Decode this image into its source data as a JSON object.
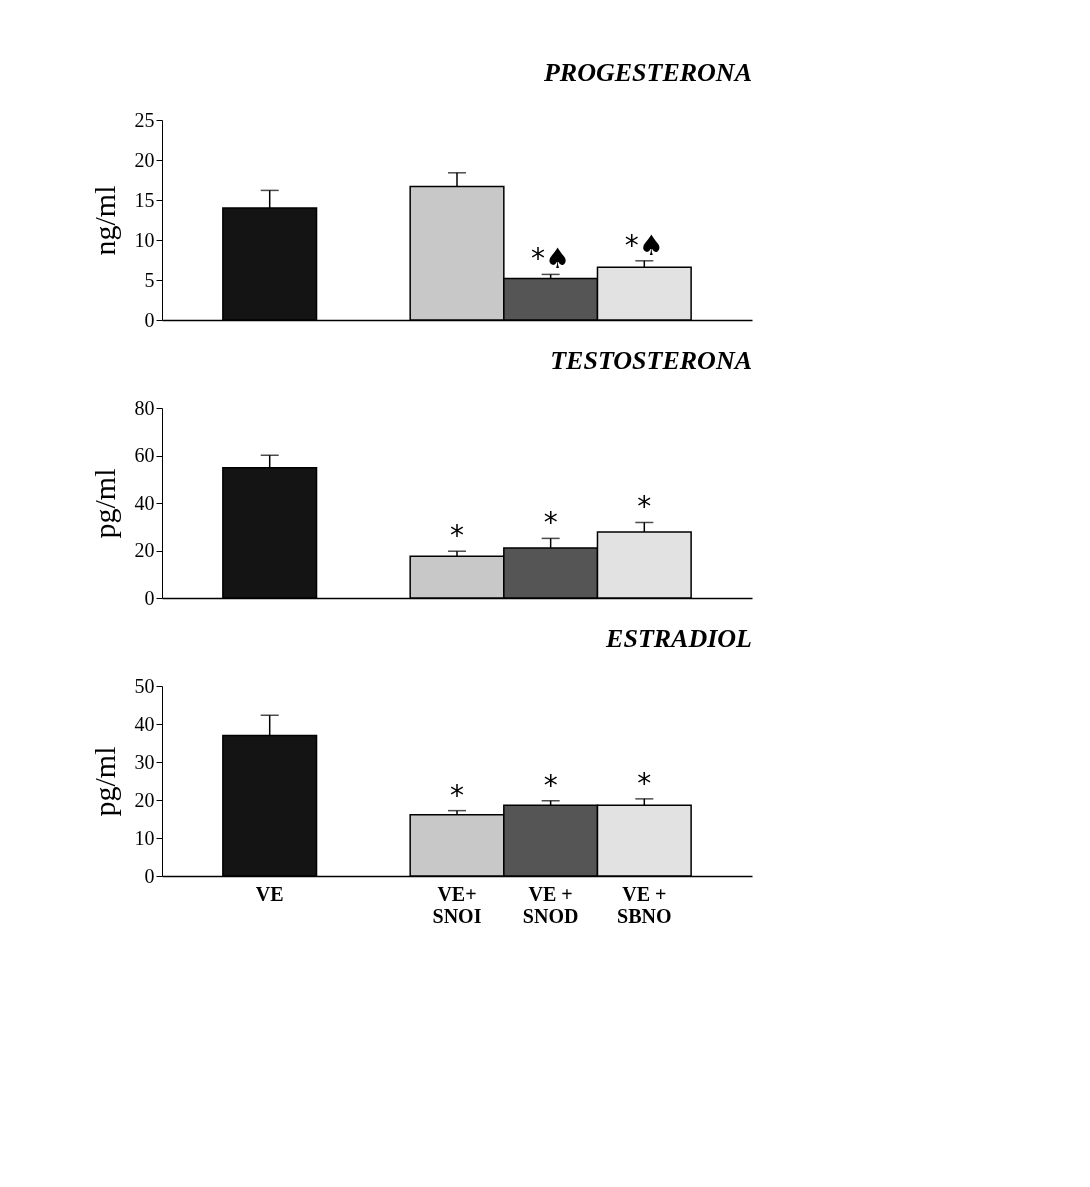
{
  "chart_data": [
    {
      "type": "bar",
      "title": "PROGESTERONA",
      "ylabel": "ng/ml",
      "categories": [
        "VE",
        null,
        "VE+ SNOI",
        "VE + SNOD",
        "VE + SBNO"
      ],
      "values": [
        14.0,
        null,
        16.7,
        5.2,
        6.6
      ],
      "colors": [
        "#141414",
        null,
        "#c8c8c8",
        "#555555",
        "#e2e2e2"
      ],
      "errors": [
        [
          14.0,
          16.2
        ],
        null,
        [
          16.7,
          18.4
        ],
        [
          5.2,
          5.7
        ],
        [
          6.6,
          7.4
        ]
      ],
      "ylim": [
        0,
        25
      ],
      "yticks": [
        0,
        5,
        10,
        15,
        20,
        25
      ],
      "tick_labels": "y",
      "legend": false,
      "grid": false,
      "annotations": [
        {
          "text": "*♠",
          "x": "VE + SNOD",
          "y": 5.7
        },
        {
          "text": "*♠",
          "x": "VE + SBNO",
          "y": 7.4
        }
      ]
    },
    {
      "type": "bar",
      "title": "TESTOSTERONA",
      "ylabel": "pg/ml",
      "categories": [
        "VE",
        null,
        "VE+ SNOI",
        "VE + SNOD",
        "VE + SBNO"
      ],
      "values": [
        54.8,
        null,
        17.6,
        21.1,
        27.8
      ],
      "colors": [
        "#141414",
        null,
        "#c8c8c8",
        "#555555",
        "#e2e2e2"
      ],
      "errors": [
        [
          54.8,
          60.1
        ],
        null,
        [
          17.6,
          19.7
        ],
        [
          21.1,
          25.1
        ],
        [
          27.8,
          31.8
        ]
      ],
      "ylim": [
        0,
        80
      ],
      "yticks": [
        0,
        20,
        40,
        60,
        80
      ],
      "tick_labels": "y",
      "legend": false,
      "grid": false,
      "annotations": [
        {
          "text": "*",
          "x": "VE+ SNOI",
          "y": 19.7
        },
        {
          "text": "*",
          "x": "VE + SNOD",
          "y": 25.1
        },
        {
          "text": "*",
          "x": "VE + SBNO",
          "y": 31.8
        }
      ]
    },
    {
      "type": "bar",
      "title": "ESTRADIOL",
      "ylabel": "pg/ml",
      "categories": [
        "VE",
        null,
        "VE+ SNOI",
        "VE + SNOD",
        "VE + SBNO"
      ],
      "values": [
        37.0,
        null,
        16.1,
        18.6,
        18.6
      ],
      "colors": [
        "#141414",
        null,
        "#c8c8c8",
        "#555555",
        "#e2e2e2"
      ],
      "errors": [
        [
          37.0,
          42.3
        ],
        null,
        [
          16.1,
          17.2
        ],
        [
          18.6,
          19.8
        ],
        [
          18.6,
          20.3
        ]
      ],
      "ylim": [
        0,
        50
      ],
      "yticks": [
        0,
        10,
        20,
        30,
        40,
        50
      ],
      "legend": false,
      "grid": false,
      "annotations": [
        {
          "text": "*",
          "x": "VE+ SNOI",
          "y": 17.2
        },
        {
          "text": "*",
          "x": "VE + SNOD",
          "y": 19.8
        },
        {
          "text": "*",
          "x": "VE + SBNO",
          "y": 20.3
        }
      ]
    }
  ]
}
